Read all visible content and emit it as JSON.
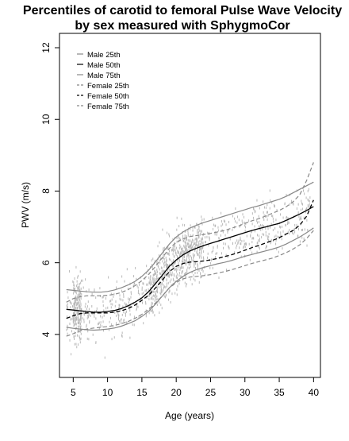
{
  "chart_data": {
    "type": "line",
    "title": "Percentiles of carotid to femoral Pulse Wave Velocity",
    "subtitle": "by sex measured with SphygmoCor",
    "xlabel": "Age (years)",
    "ylabel": "PWV (m/s)",
    "xlim": [
      3,
      41
    ],
    "ylim": [
      2.8,
      12.4
    ],
    "x_ticks": [
      5,
      10,
      15,
      20,
      25,
      30,
      35,
      40
    ],
    "y_ticks": [
      4,
      6,
      8,
      10,
      12
    ],
    "grid": false,
    "legend_position": "top-left",
    "x": [
      4,
      5,
      6,
      7,
      8,
      9,
      10,
      11,
      12,
      13,
      14,
      15,
      16,
      17,
      18,
      19,
      20,
      21,
      22,
      23,
      24,
      25,
      26,
      27,
      28,
      29,
      30,
      31,
      32,
      33,
      34,
      35,
      36,
      37,
      38,
      39,
      40
    ],
    "series": [
      {
        "name": "Male 25th",
        "color": "#888888",
        "dash": "solid",
        "values": [
          4.2,
          4.17,
          4.15,
          4.13,
          4.12,
          4.13,
          4.15,
          4.18,
          4.23,
          4.3,
          4.38,
          4.5,
          4.65,
          4.85,
          5.08,
          5.3,
          5.48,
          5.62,
          5.73,
          5.81,
          5.87,
          5.92,
          5.97,
          6.01,
          6.06,
          6.12,
          6.18,
          6.23,
          6.28,
          6.33,
          6.38,
          6.44,
          6.52,
          6.62,
          6.72,
          6.84,
          6.97
        ]
      },
      {
        "name": "Male 50th",
        "color": "#000000",
        "dash": "solid",
        "values": [
          4.7,
          4.68,
          4.66,
          4.64,
          4.62,
          4.62,
          4.64,
          4.67,
          4.72,
          4.8,
          4.9,
          5.02,
          5.2,
          5.42,
          5.66,
          5.9,
          6.08,
          6.22,
          6.33,
          6.41,
          6.48,
          6.54,
          6.6,
          6.66,
          6.72,
          6.78,
          6.84,
          6.9,
          6.95,
          7.0,
          7.05,
          7.1,
          7.18,
          7.27,
          7.36,
          7.46,
          7.57
        ]
      },
      {
        "name": "Male 75th",
        "color": "#888888",
        "dash": "solid",
        "values": [
          5.25,
          5.23,
          5.21,
          5.19,
          5.18,
          5.18,
          5.2,
          5.24,
          5.3,
          5.38,
          5.48,
          5.62,
          5.8,
          6.03,
          6.28,
          6.52,
          6.72,
          6.86,
          6.97,
          7.05,
          7.12,
          7.18,
          7.24,
          7.3,
          7.36,
          7.42,
          7.48,
          7.54,
          7.59,
          7.65,
          7.71,
          7.77,
          7.85,
          7.95,
          8.05,
          8.15,
          8.25
        ]
      },
      {
        "name": "Female 25th",
        "color": "#888888",
        "dash": "dashed",
        "values": [
          3.95,
          4.02,
          4.1,
          4.15,
          4.18,
          4.2,
          4.22,
          4.25,
          4.3,
          4.36,
          4.45,
          4.56,
          4.7,
          4.88,
          5.08,
          5.3,
          5.45,
          5.55,
          5.6,
          5.62,
          5.64,
          5.67,
          5.71,
          5.75,
          5.8,
          5.86,
          5.92,
          5.98,
          6.03,
          6.08,
          6.13,
          6.2,
          6.28,
          6.38,
          6.5,
          6.68,
          6.9
        ]
      },
      {
        "name": "Female 50th",
        "color": "#000000",
        "dash": "dashed",
        "values": [
          4.45,
          4.52,
          4.58,
          4.6,
          4.6,
          4.6,
          4.6,
          4.62,
          4.66,
          4.72,
          4.82,
          4.95,
          5.1,
          5.3,
          5.52,
          5.75,
          5.9,
          5.98,
          6.02,
          6.03,
          6.05,
          6.08,
          6.12,
          6.17,
          6.22,
          6.28,
          6.35,
          6.42,
          6.48,
          6.55,
          6.62,
          6.7,
          6.8,
          6.9,
          7.05,
          7.3,
          7.75
        ]
      },
      {
        "name": "Female 75th",
        "color": "#888888",
        "dash": "dashed",
        "values": [
          4.9,
          5.0,
          5.05,
          5.08,
          5.08,
          5.08,
          5.09,
          5.12,
          5.17,
          5.25,
          5.36,
          5.5,
          5.68,
          5.9,
          6.15,
          6.4,
          6.57,
          6.67,
          6.73,
          6.76,
          6.79,
          6.82,
          6.86,
          6.9,
          6.96,
          7.02,
          7.1,
          7.17,
          7.23,
          7.3,
          7.38,
          7.46,
          7.56,
          7.7,
          7.9,
          8.3,
          8.8
        ]
      }
    ]
  }
}
